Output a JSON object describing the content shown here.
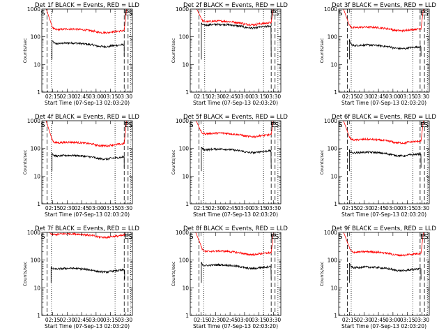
{
  "chart_data": [
    {
      "type": "line",
      "title": "Det 1f BLACK = Events, RED = LLD",
      "xlabel": "Start Time (07-Sep-13 02:03:20)",
      "ylabel": "Counts/sec",
      "yscale": "log",
      "ylim": [
        1,
        1000
      ],
      "xlim_minutes": [
        2,
        96
      ],
      "x_ticks": [
        "02:15",
        "02:30",
        "02:45",
        "03:00",
        "03:15",
        "03:30"
      ],
      "y_ticks": [
        "1",
        "10",
        "100",
        "1000"
      ],
      "markers": [
        {
          "label": "S",
          "x_min": 0.8
        },
        {
          "label": "E",
          "x_min": 87.5
        },
        {
          "label": "S",
          "x_min": 91.5
        }
      ],
      "dashed_lines_min": [
        7.5,
        87.5,
        91.5
      ],
      "dotted_lines_min": [
        12,
        78,
        94
      ],
      "window_min": [
        12,
        87.5
      ],
      "series": [
        {
          "name": "BLACK = Events",
          "color": "#000000",
          "level": 53,
          "start": 75
        },
        {
          "name": "RED = LLD",
          "color": "#ff0000",
          "level": 170,
          "start": 280
        }
      ]
    },
    {
      "type": "line",
      "title": "Det 2f BLACK = Events, RED = LLD",
      "xlabel": "Start Time (07-Sep-13 02:03:20)",
      "ylabel": "Counts/sec",
      "yscale": "log",
      "ylim": [
        1,
        1000
      ],
      "xlim_minutes": [
        2,
        96
      ],
      "x_ticks": [
        "02:15",
        "02:30",
        "02:45",
        "03:00",
        "03:15",
        "03:30"
      ],
      "y_ticks": [
        "1",
        "10",
        "100",
        "1000"
      ],
      "markers": [
        {
          "label": "E",
          "x_min": 85.5
        },
        {
          "label": "S",
          "x_min": 89.5
        }
      ],
      "dashed_lines_min": [
        11,
        86,
        90
      ],
      "dotted_lines_min": [
        17,
        78,
        93
      ],
      "window_min": [
        13,
        86
      ],
      "series": [
        {
          "name": "BLACK = Events",
          "color": "#000000",
          "level": 250,
          "start": 300
        },
        {
          "name": "RED = LLD",
          "color": "#ff0000",
          "level": 330,
          "start": 500
        }
      ]
    },
    {
      "type": "line",
      "title": "Det 3f BLACK = Events, RED = LLD",
      "xlabel": "Start Time (07-Sep-13 02:03:20)",
      "ylabel": "Counts/sec",
      "yscale": "log",
      "ylim": [
        1,
        1000
      ],
      "xlim_minutes": [
        2,
        96
      ],
      "x_ticks": [
        "02:15",
        "02:30",
        "02:45",
        "03:00",
        "03:15",
        "03:30"
      ],
      "y_ticks": [
        "1",
        "10",
        "100",
        "1000"
      ],
      "markers": [
        {
          "label": "S",
          "x_min": 1.5
        },
        {
          "label": "E",
          "x_min": 86.5
        },
        {
          "label": "S",
          "x_min": 90.5
        }
      ],
      "dashed_lines_min": [
        11,
        86.5,
        91
      ],
      "dotted_lines_min": [
        15,
        79,
        94
      ],
      "window_min": [
        12.5,
        87.5
      ],
      "series": [
        {
          "name": "BLACK = Events",
          "color": "#000000",
          "level": 45,
          "start": 75
        },
        {
          "name": "RED = LLD",
          "color": "#ff0000",
          "level": 200,
          "start": 300
        }
      ]
    },
    {
      "type": "line",
      "title": "Det 4f BLACK = Events, RED = LLD",
      "xlabel": "Start Time (07-Sep-13 02:03:20)",
      "ylabel": "Counts/sec",
      "yscale": "log",
      "ylim": [
        1,
        1000
      ],
      "xlim_minutes": [
        2,
        96
      ],
      "x_ticks": [
        "02:15",
        "02:30",
        "02:45",
        "03:00",
        "03:15",
        "03:30"
      ],
      "y_ticks": [
        "1",
        "10",
        "100",
        "1000"
      ],
      "markers": [
        {
          "label": "S",
          "x_min": 0.8
        },
        {
          "label": "E",
          "x_min": 87.5
        },
        {
          "label": "S",
          "x_min": 91.5
        }
      ],
      "dashed_lines_min": [
        7.5,
        87.5,
        91.5
      ],
      "dotted_lines_min": [
        12,
        78,
        94
      ],
      "window_min": [
        12,
        87.5
      ],
      "series": [
        {
          "name": "BLACK = Events",
          "color": "#000000",
          "level": 50,
          "start": 70
        },
        {
          "name": "RED = LLD",
          "color": "#ff0000",
          "level": 150,
          "start": 250
        }
      ]
    },
    {
      "type": "line",
      "title": "Det 5f BLACK = Events, RED = LLD",
      "xlabel": "Start Time (07-Sep-13 02:03:20)",
      "ylabel": "Counts/sec",
      "yscale": "log",
      "ylim": [
        1,
        1000
      ],
      "xlim_minutes": [
        2,
        96
      ],
      "x_ticks": [
        "02:15",
        "02:30",
        "02:45",
        "03:00",
        "03:15",
        "03:30"
      ],
      "y_ticks": [
        "1",
        "10",
        "100",
        "1000"
      ],
      "markers": [
        {
          "label": "S",
          "x_min": 0.8
        },
        {
          "label": "E",
          "x_min": 85.5
        },
        {
          "label": "S",
          "x_min": 89.5
        }
      ],
      "dashed_lines_min": [
        11,
        86,
        90
      ],
      "dotted_lines_min": [
        16,
        78,
        93
      ],
      "window_min": [
        13,
        86
      ],
      "series": [
        {
          "name": "BLACK = Events",
          "color": "#000000",
          "level": 85,
          "start": 110
        },
        {
          "name": "RED = LLD",
          "color": "#ff0000",
          "level": 320,
          "start": 420
        }
      ]
    },
    {
      "type": "line",
      "title": "Det 6f BLACK = Events, RED = LLD",
      "xlabel": "Start Time (07-Sep-13 02:03:20)",
      "ylabel": "Counts/sec",
      "yscale": "log",
      "ylim": [
        1,
        1000
      ],
      "xlim_minutes": [
        2,
        96
      ],
      "x_ticks": [
        "02:15",
        "02:30",
        "02:45",
        "03:00",
        "03:15",
        "03:30"
      ],
      "y_ticks": [
        "1",
        "10",
        "100",
        "1000"
      ],
      "markers": [
        {
          "label": "S",
          "x_min": 1.5
        },
        {
          "label": "E",
          "x_min": 86.5
        },
        {
          "label": "S",
          "x_min": 90.5
        }
      ],
      "dashed_lines_min": [
        11,
        86.5,
        91
      ],
      "dotted_lines_min": [
        15,
        79,
        94
      ],
      "window_min": [
        12.5,
        87.5
      ],
      "series": [
        {
          "name": "BLACK = Events",
          "color": "#000000",
          "level": 65,
          "start": 85
        },
        {
          "name": "RED = LLD",
          "color": "#ff0000",
          "level": 190,
          "start": 300
        }
      ]
    },
    {
      "type": "line",
      "title": "Det 7f BLACK = Events, RED = LLD",
      "xlabel": "Start Time (07-Sep-13 02:03:20)",
      "ylabel": "Counts/sec",
      "yscale": "log",
      "ylim": [
        1,
        1000
      ],
      "xlim_minutes": [
        2,
        96
      ],
      "x_ticks": [
        "02:15",
        "02:30",
        "02:45",
        "03:00",
        "03:15",
        "03:30"
      ],
      "y_ticks": [
        "1",
        "10",
        "100",
        "1000"
      ],
      "markers": [
        {
          "label": "S",
          "x_min": 0.8
        },
        {
          "label": "E",
          "x_min": 87.5
        },
        {
          "label": "S",
          "x_min": 91.5
        }
      ],
      "dashed_lines_min": [
        7.5,
        87.5,
        91.5
      ],
      "dotted_lines_min": [
        12,
        78,
        94
      ],
      "window_min": [
        11,
        88
      ],
      "series": [
        {
          "name": "BLACK = Events",
          "color": "#000000",
          "level": 45,
          "start": 55
        },
        {
          "name": "RED = LLD",
          "color": "#ff0000",
          "level": 800,
          "start": 900
        }
      ]
    },
    {
      "type": "line",
      "title": "Det 8f BLACK = Events, RED = LLD",
      "xlabel": "Start Time (07-Sep-13 02:03:20)",
      "ylabel": "Counts/sec",
      "yscale": "log",
      "ylim": [
        1,
        1000
      ],
      "xlim_minutes": [
        2,
        96
      ],
      "x_ticks": [
        "02:15",
        "02:30",
        "02:45",
        "03:00",
        "03:15",
        "03:30"
      ],
      "y_ticks": [
        "1",
        "10",
        "100",
        "1000"
      ],
      "markers": [
        {
          "label": "S",
          "x_min": 0.8
        },
        {
          "label": "E",
          "x_min": 85.5
        },
        {
          "label": "S",
          "x_min": 89.5
        }
      ],
      "dashed_lines_min": [
        11,
        86,
        90
      ],
      "dotted_lines_min": [
        16,
        78,
        93
      ],
      "window_min": [
        13,
        86
      ],
      "series": [
        {
          "name": "BLACK = Events",
          "color": "#000000",
          "level": 60,
          "start": 80
        },
        {
          "name": "RED = LLD",
          "color": "#ff0000",
          "level": 190,
          "start": 350
        }
      ]
    },
    {
      "type": "line",
      "title": "Det 9f BLACK = Events, RED = LLD",
      "xlabel": "Start Time (07-Sep-13 02:03:20)",
      "ylabel": "Counts/sec",
      "yscale": "log",
      "ylim": [
        1,
        1000
      ],
      "xlim_minutes": [
        2,
        96
      ],
      "x_ticks": [
        "02:15",
        "02:30",
        "02:45",
        "03:00",
        "03:15",
        "03:30"
      ],
      "y_ticks": [
        "1",
        "10",
        "100",
        "1000"
      ],
      "markers": [
        {
          "label": "S",
          "x_min": 1.5
        },
        {
          "label": "E",
          "x_min": 86.5
        },
        {
          "label": "S",
          "x_min": 90.5
        }
      ],
      "dashed_lines_min": [
        11,
        86.5,
        91
      ],
      "dotted_lines_min": [
        15,
        79,
        94
      ],
      "window_min": [
        12.5,
        87.5
      ],
      "series": [
        {
          "name": "BLACK = Events",
          "color": "#000000",
          "level": 50,
          "start": 75
        },
        {
          "name": "RED = LLD",
          "color": "#ff0000",
          "level": 180,
          "start": 320
        }
      ]
    }
  ]
}
